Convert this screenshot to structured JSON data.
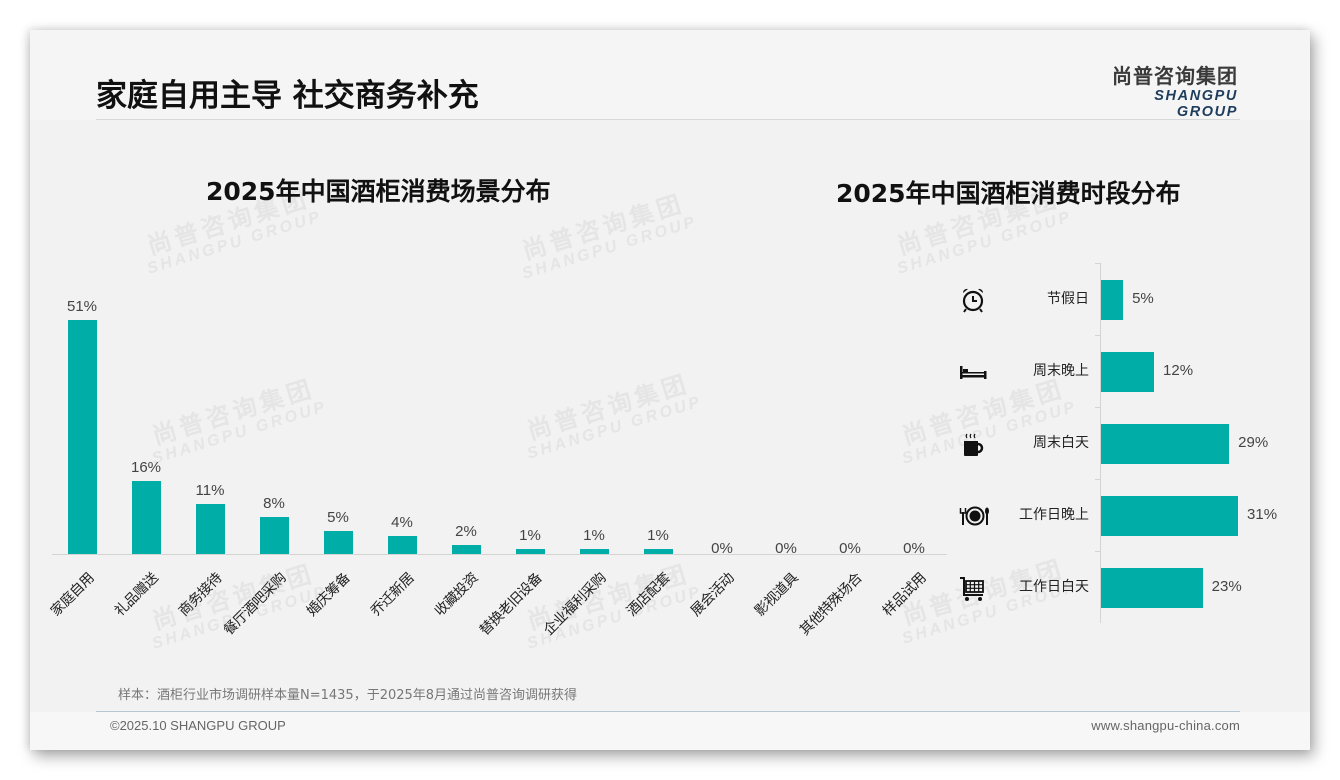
{
  "header": {
    "title": "家庭自用主导 社交商务补充",
    "logo_cn": "尚普咨询集团",
    "logo_en": "SHANGPU GROUP"
  },
  "watermark": {
    "cn": "尚普咨询集团",
    "en": "SHANGPU GROUP"
  },
  "colors": {
    "bar": "#00aea7",
    "background": "#f2f2f2",
    "logo_en": "#1f3d5c"
  },
  "left_chart": {
    "title": "2025年中国酒柜消费场景分布",
    "items": [
      {
        "label": "家庭自用",
        "value": 51,
        "display": "51%"
      },
      {
        "label": "礼品赠送",
        "value": 16,
        "display": "16%"
      },
      {
        "label": "商务接待",
        "value": 11,
        "display": "11%"
      },
      {
        "label": "餐厅酒吧采购",
        "value": 8,
        "display": "8%"
      },
      {
        "label": "婚庆筹备",
        "value": 5,
        "display": "5%"
      },
      {
        "label": "乔迁新居",
        "value": 4,
        "display": "4%"
      },
      {
        "label": "收藏投资",
        "value": 2,
        "display": "2%"
      },
      {
        "label": "替换老旧设备",
        "value": 1,
        "display": "1%"
      },
      {
        "label": "企业福利采购",
        "value": 1,
        "display": "1%"
      },
      {
        "label": "酒店配套",
        "value": 1,
        "display": "1%"
      },
      {
        "label": "展会活动",
        "value": 0,
        "display": "0%"
      },
      {
        "label": "影视道具",
        "value": 0,
        "display": "0%"
      },
      {
        "label": "其他特殊场合",
        "value": 0,
        "display": "0%"
      },
      {
        "label": "样品试用",
        "value": 0,
        "display": "0%"
      }
    ]
  },
  "right_chart": {
    "title": "2025年中国酒柜消费时段分布",
    "items": [
      {
        "label": "节假日",
        "value": 5,
        "display": "5%",
        "icon": "alarm-clock-icon"
      },
      {
        "label": "周末晚上",
        "value": 12,
        "display": "12%",
        "icon": "bed-icon"
      },
      {
        "label": "周末白天",
        "value": 29,
        "display": "29%",
        "icon": "coffee-mug-icon"
      },
      {
        "label": "工作日晚上",
        "value": 31,
        "display": "31%",
        "icon": "dinner-plate-icon"
      },
      {
        "label": "工作日白天",
        "value": 23,
        "display": "23%",
        "icon": "shopping-cart-icon"
      }
    ]
  },
  "footer": {
    "sample_note": "样本：酒柜行业市场调研样本量N=1435，于2025年8月通过尚普咨询调研获得",
    "copyright": "©2025.10 SHANGPU GROUP",
    "website": "www.shangpu-china.com"
  },
  "chart_data": [
    {
      "type": "bar",
      "title": "2025年中国酒柜消费场景分布",
      "categories": [
        "家庭自用",
        "礼品赠送",
        "商务接待",
        "餐厅酒吧采购",
        "婚庆筹备",
        "乔迁新居",
        "收藏投资",
        "替换老旧设备",
        "企业福利采购",
        "酒店配套",
        "展会活动",
        "影视道具",
        "其他特殊场合",
        "样品试用"
      ],
      "values": [
        51,
        16,
        11,
        8,
        5,
        4,
        2,
        1,
        1,
        1,
        0,
        0,
        0,
        0
      ],
      "unit": "%",
      "xlabel": "",
      "ylabel": "",
      "ylim": [
        0,
        51
      ],
      "grid": false,
      "legend": "none",
      "data_labels": true,
      "orientation": "vertical",
      "color": "#00aea7"
    },
    {
      "type": "bar",
      "title": "2025年中国酒柜消费时段分布",
      "categories": [
        "节假日",
        "周末晚上",
        "周末白天",
        "工作日晚上",
        "工作日白天"
      ],
      "values": [
        5,
        12,
        29,
        31,
        23
      ],
      "unit": "%",
      "xlabel": "",
      "ylabel": "",
      "grid": false,
      "legend": "none",
      "data_labels": true,
      "orientation": "horizontal",
      "color": "#00aea7"
    }
  ]
}
